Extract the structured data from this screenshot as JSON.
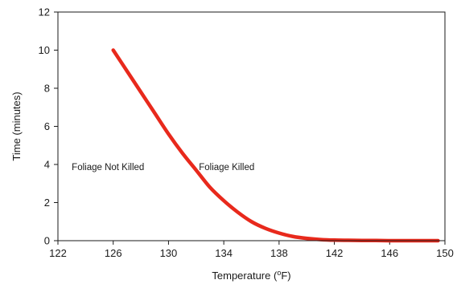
{
  "chart_data": {
    "type": "line",
    "title": "",
    "xlabel": {
      "main": "Temperature (",
      "superscript": "o",
      "unit": "F)"
    },
    "ylabel": "Time (minutes)",
    "xlim": [
      122,
      150
    ],
    "ylim": [
      0,
      12
    ],
    "xticks": [
      122,
      126,
      130,
      134,
      138,
      142,
      146,
      150
    ],
    "yticks": [
      0,
      2,
      4,
      6,
      8,
      10,
      12
    ],
    "grid": false,
    "legend": "none",
    "annotations": [
      {
        "text": "Foliage Not Killed",
        "x": 123,
        "y": 3.7
      },
      {
        "text": "Foliage Killed",
        "x": 132.2,
        "y": 3.7
      }
    ],
    "series": [
      {
        "color": "#e8291c",
        "x": [
          126,
          127,
          128,
          129,
          130,
          131,
          132,
          133,
          134,
          135,
          136,
          137,
          138,
          139,
          140,
          141,
          142,
          143,
          144,
          145,
          146,
          147,
          148,
          149.5
        ],
        "y": [
          10.0,
          8.9,
          7.8,
          6.7,
          5.6,
          4.6,
          3.7,
          2.8,
          2.1,
          1.5,
          1.0,
          0.65,
          0.4,
          0.22,
          0.12,
          0.06,
          0.03,
          0.02,
          0.01,
          0.01,
          0.0,
          0.0,
          0.0,
          0.0
        ]
      }
    ]
  }
}
